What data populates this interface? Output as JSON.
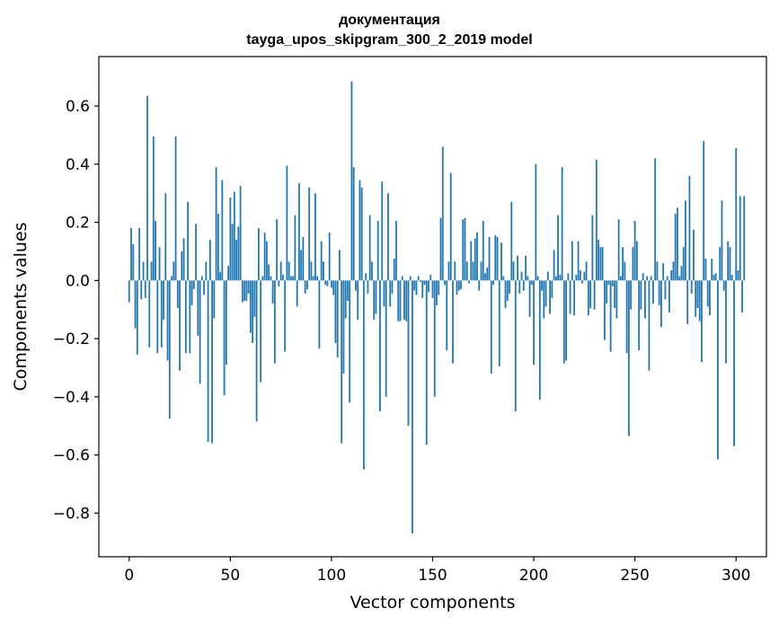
{
  "chart_data": {
    "type": "bar",
    "title": "документация",
    "subtitle": "tayga_upos_skipgram_300_2_2019 model",
    "xlabel": "Vector components",
    "ylabel": "Components values",
    "xlim": [
      -15,
      315
    ],
    "ylim": [
      -0.95,
      0.77
    ],
    "xticks": [
      0,
      50,
      100,
      150,
      200,
      250,
      300
    ],
    "xtick_labels": [
      "0",
      "50",
      "100",
      "150",
      "200",
      "250",
      "300"
    ],
    "yticks": [
      -0.8,
      -0.6,
      -0.4,
      -0.2,
      0.0,
      0.2,
      0.4,
      0.6
    ],
    "ytick_labels": [
      "−0.8",
      "−0.6",
      "−0.4",
      "−0.2",
      "0.0",
      "0.2",
      "0.4",
      "0.6"
    ],
    "bar_color": "#1f77b4",
    "grid": false,
    "values": [
      -0.075,
      0.18,
      0.125,
      -0.165,
      -0.255,
      0.18,
      -0.065,
      0.065,
      -0.06,
      0.635,
      -0.23,
      0.065,
      0.495,
      0.205,
      -0.25,
      0.115,
      -0.23,
      -0.135,
      0.3,
      -0.275,
      -0.475,
      0.015,
      0.065,
      0.495,
      -0.095,
      -0.31,
      0.1,
      0.145,
      -0.25,
      0.27,
      -0.25,
      -0.085,
      -0.03,
      0.195,
      -0.19,
      -0.355,
      0.015,
      -0.05,
      0.065,
      -0.555,
      0.14,
      -0.56,
      -0.13,
      0.39,
      0.23,
      0.03,
      0.345,
      -0.395,
      -0.29,
      0.05,
      0.285,
      0.195,
      0.305,
      0.14,
      0.185,
      0.325,
      -0.075,
      -0.07,
      -0.07,
      -0.045,
      -0.18,
      -0.215,
      -0.125,
      -0.485,
      0.18,
      -0.35,
      0.015,
      0.165,
      0.135,
      0.055,
      0.015,
      -0.08,
      -0.285,
      0.21,
      -0.02,
      0.065,
      0.02,
      -0.245,
      0.395,
      0.065,
      0.015,
      0.015,
      0.225,
      -0.09,
      0.335,
      0.105,
      0.15,
      -0.045,
      -0.03,
      0.32,
      0.065,
      0.015,
      0.3,
      0.015,
      -0.235,
      0.135,
      0.065,
      -0.015,
      -0.02,
      0.165,
      -0.025,
      -0.05,
      -0.215,
      -0.265,
      0.105,
      -0.56,
      -0.32,
      -0.13,
      -0.07,
      -0.42,
      0.685,
      0.39,
      -0.035,
      -0.135,
      0.345,
      0.32,
      -0.65,
      0.025,
      -0.045,
      0.225,
      0.065,
      -0.135,
      -0.115,
      0.205,
      -0.45,
      0.34,
      -0.09,
      -0.4,
      0.3,
      -0.09,
      -0.045,
      0.075,
      0.205,
      -0.14,
      -0.14,
      0.015,
      -0.135,
      -0.14,
      -0.5,
      0.015,
      -0.87,
      -0.035,
      -0.05,
      0.015,
      -0.005,
      -0.06,
      -0.015,
      -0.565,
      -0.04,
      0.02,
      -0.06,
      -0.4,
      -0.085,
      -0.05,
      0.215,
      0.46,
      -0.015,
      -0.24,
      0.065,
      0.37,
      -0.285,
      0.065,
      -0.05,
      -0.035,
      -0.03,
      0.21,
      0.215,
      0.065,
      -0.01,
      0.135,
      0.065,
      0.145,
      0.165,
      -0.035,
      0.065,
      0.205,
      0.025,
      0.045,
      0.15,
      -0.32,
      -0.015,
      0.155,
      0.15,
      -0.295,
      0.13,
      0.015,
      -0.095,
      -0.07,
      -0.045,
      0.27,
      0.065,
      -0.45,
      0.085,
      -0.045,
      0.03,
      -0.035,
      0.085,
      0.015,
      -0.125,
      -0.015,
      -0.29,
      0.4,
      0.015,
      -0.41,
      -0.035,
      -0.13,
      -0.09,
      0.03,
      -0.115,
      -0.06,
      0.105,
      0.015,
      0.225,
      0.02,
      0.39,
      -0.285,
      -0.275,
      0.025,
      -0.115,
      0.135,
      -0.12,
      0.02,
      0.135,
      0.035,
      -0.01,
      0.03,
      0.065,
      -0.12,
      -0.095,
      0.225,
      -0.1,
      0.415,
      0.14,
      0.115,
      0.115,
      -0.205,
      -0.08,
      -0.015,
      -0.245,
      -0.02,
      -0.095,
      -0.13,
      0.21,
      0.015,
      0.115,
      0.065,
      -0.25,
      -0.535,
      -0.1,
      0.115,
      0.205,
      0.135,
      -0.24,
      -0.1,
      0.025,
      -0.13,
      0.015,
      -0.31,
      0.015,
      -0.08,
      0.42,
      0.065,
      -0.085,
      -0.16,
      0.06,
      -0.065,
      0.015,
      -0.11,
      0.035,
      0.065,
      0.23,
      0.25,
      0.015,
      0.05,
      0.115,
      0.275,
      -0.15,
      0.36,
      -0.045,
      0.175,
      -0.125,
      -0.095,
      -0.14,
      -0.28,
      0.48,
      0.075,
      -0.09,
      -0.12,
      0.075,
      0.02,
      0.025,
      -0.615,
      0.115,
      0.275,
      -0.035,
      -0.285,
      0.135,
      0.115,
      0.02,
      -0.57,
      0.455,
      0.035,
      0.29,
      -0.11,
      0.29
    ]
  }
}
